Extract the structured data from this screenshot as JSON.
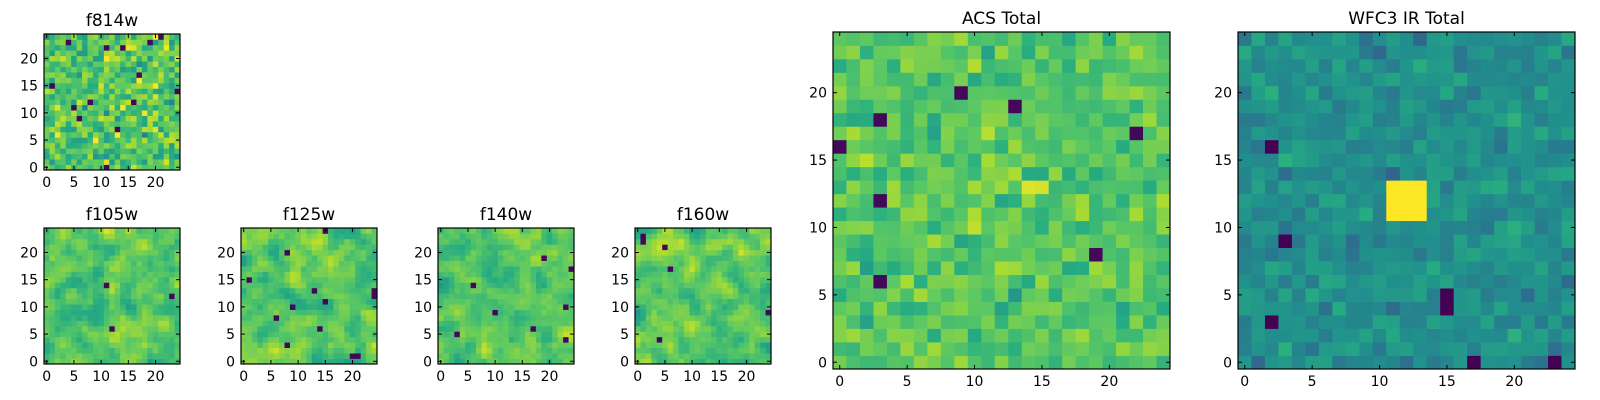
{
  "chart_data": [
    {
      "type": "heatmap",
      "title": "f814w",
      "rows": 25,
      "cols": 25,
      "x_ticks": [
        "0",
        "5",
        "10",
        "15",
        "20"
      ],
      "y_ticks": [
        "0",
        "5",
        "10",
        "15",
        "20"
      ],
      "colormap": "viridis",
      "texture": "fine-noise",
      "seed": 11,
      "noise_std": 0.18,
      "hotspot": null,
      "note": "per-pixel intensities are random noise; values approximated"
    },
    {
      "type": "heatmap",
      "title": "f105w",
      "rows": 25,
      "cols": 25,
      "x_ticks": [
        "0",
        "5",
        "10",
        "15",
        "20"
      ],
      "y_ticks": [
        "0",
        "5",
        "10",
        "15",
        "20"
      ],
      "colormap": "viridis",
      "texture": "smooth-noise",
      "seed": 23,
      "noise_std": 0.16,
      "hotspot": null,
      "note": "per-pixel intensities are random noise; values approximated"
    },
    {
      "type": "heatmap",
      "title": "f125w",
      "rows": 25,
      "cols": 25,
      "x_ticks": [
        "0",
        "5",
        "10",
        "15",
        "20"
      ],
      "y_ticks": [
        "0",
        "5",
        "10",
        "15",
        "20"
      ],
      "colormap": "viridis",
      "texture": "smooth-noise",
      "seed": 37,
      "noise_std": 0.16,
      "hotspot": null,
      "note": "per-pixel intensities are random noise; values approximated"
    },
    {
      "type": "heatmap",
      "title": "f140w",
      "rows": 25,
      "cols": 25,
      "x_ticks": [
        "0",
        "5",
        "10",
        "15",
        "20"
      ],
      "y_ticks": [
        "0",
        "5",
        "10",
        "15",
        "20"
      ],
      "colormap": "viridis",
      "texture": "smooth-noise",
      "seed": 41,
      "noise_std": 0.16,
      "hotspot": null,
      "note": "per-pixel intensities are random noise; values approximated"
    },
    {
      "type": "heatmap",
      "title": "f160w",
      "rows": 25,
      "cols": 25,
      "x_ticks": [
        "0",
        "5",
        "10",
        "15",
        "20"
      ],
      "y_ticks": [
        "0",
        "5",
        "10",
        "15",
        "20"
      ],
      "colormap": "viridis",
      "texture": "smooth-noise",
      "seed": 53,
      "noise_std": 0.16,
      "hotspot": null,
      "note": "per-pixel intensities are random noise; values approximated"
    },
    {
      "type": "heatmap",
      "title": "ACS Total",
      "rows": 25,
      "cols": 25,
      "x_ticks": [
        "0",
        "5",
        "10",
        "15",
        "20"
      ],
      "y_ticks": [
        "0",
        "5",
        "10",
        "15",
        "20"
      ],
      "colormap": "viridis",
      "texture": "fine-noise",
      "seed": 67,
      "noise_std": 0.12,
      "hotspot": null,
      "note": "per-pixel intensities are random noise; values approximated"
    },
    {
      "type": "heatmap",
      "title": "WFC3 IR Total",
      "rows": 25,
      "cols": 25,
      "x_ticks": [
        "0",
        "5",
        "10",
        "15",
        "20"
      ],
      "y_ticks": [
        "0",
        "5",
        "10",
        "15",
        "20"
      ],
      "colormap": "viridis",
      "texture": "fine-noise",
      "seed": 79,
      "noise_std": 0.1,
      "hotspot": {
        "x": 12,
        "y": 12,
        "radius": 1.6
      },
      "note": "bright compact source near pixel (12,12); other intensities are noise, approximated"
    }
  ]
}
